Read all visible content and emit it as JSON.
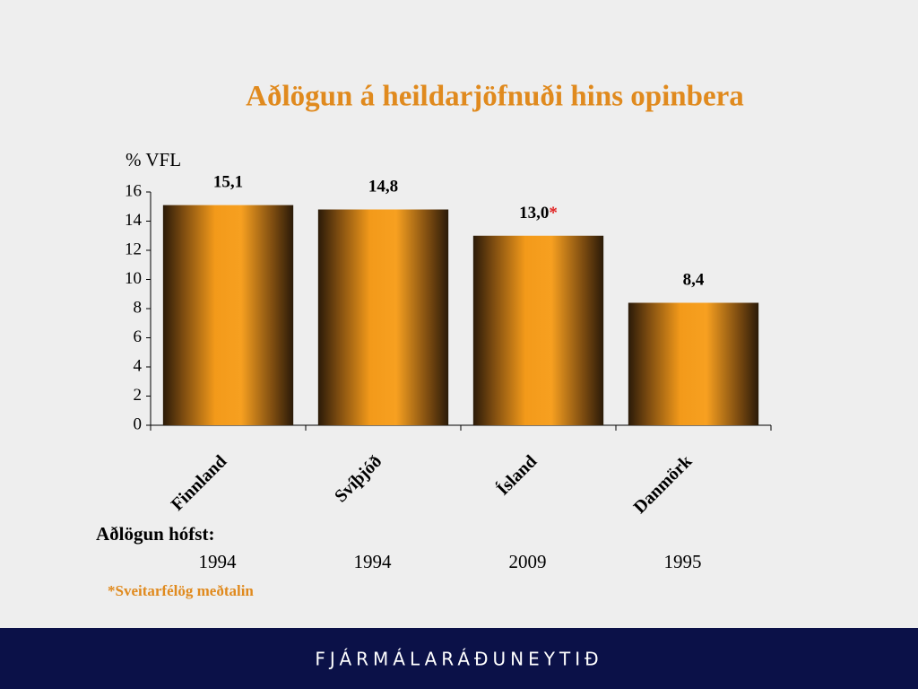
{
  "chart_data": {
    "type": "bar",
    "title": "Aðlögun á heildarjöfnuði hins opinbera",
    "y_label": "% VFL",
    "categories": [
      "Finnland",
      "Svíþjóð",
      "Ísland",
      "Danmörk"
    ],
    "values": [
      15.1,
      14.8,
      13.0,
      8.4
    ],
    "value_labels": [
      "15,1",
      "14,8",
      "13,0",
      "8,4"
    ],
    "value_label_notes": [
      null,
      null,
      "*",
      null
    ],
    "color": "#f39a1a",
    "ylim": [
      0,
      16
    ],
    "yticks": [
      0,
      2,
      4,
      6,
      8,
      10,
      12,
      14,
      16
    ],
    "start_label": "Aðlögun hófst:",
    "start_years": [
      1994,
      1994,
      2009,
      1995
    ],
    "footnote": "*Sveitarfélög meðtalin"
  },
  "footer": {
    "text": "FJÁRMÁLARÁÐUNEYTIÐ"
  }
}
